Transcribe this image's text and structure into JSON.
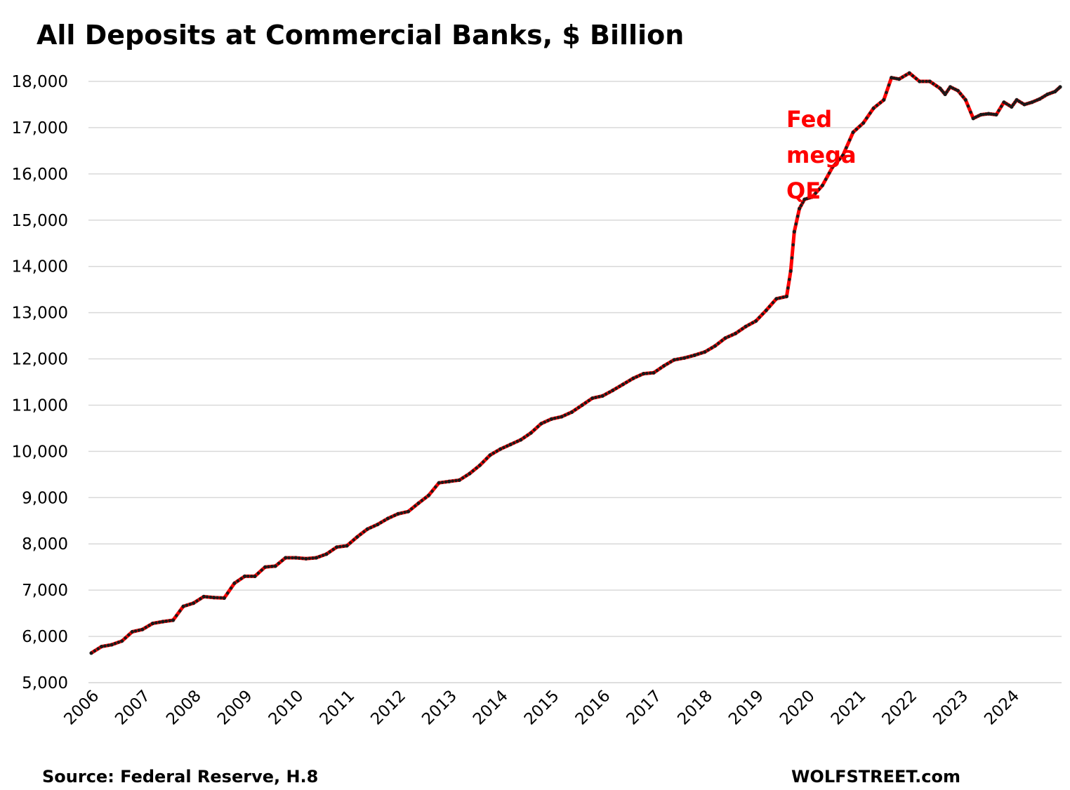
{
  "chart_data": {
    "type": "line",
    "title": "All Deposits at Commercial Banks, $ Billion",
    "xlabel": "",
    "ylabel": "",
    "ylim": [
      5000,
      18000
    ],
    "xlim": [
      2006.0,
      2024.95
    ],
    "yticks": [
      "5,000",
      "6,000",
      "7,000",
      "8,000",
      "9,000",
      "10,000",
      "11,000",
      "12,000",
      "13,000",
      "14,000",
      "15,000",
      "16,000",
      "17,000",
      "18,000"
    ],
    "ytick_values": [
      5000,
      6000,
      7000,
      8000,
      9000,
      10000,
      11000,
      12000,
      13000,
      14000,
      15000,
      16000,
      17000,
      18000
    ],
    "xticks": [
      "2006",
      "2007",
      "2008",
      "2009",
      "2010",
      "2011",
      "2012",
      "2013",
      "2014",
      "2015",
      "2016",
      "2017",
      "2018",
      "2019",
      "2020",
      "2021",
      "2022",
      "2023",
      "2024"
    ],
    "xtick_values": [
      2006,
      2007,
      2008,
      2009,
      2010,
      2011,
      2012,
      2013,
      2014,
      2015,
      2016,
      2017,
      2018,
      2019,
      2020,
      2021,
      2022,
      2023,
      2024
    ],
    "grid": "horizontal",
    "legend": "none",
    "line_color": "#ff0000",
    "marker_color": "#1a1a1a",
    "series": [
      {
        "points": [
          [
            2006.0,
            5640
          ],
          [
            2006.2,
            5780
          ],
          [
            2006.4,
            5820
          ],
          [
            2006.6,
            5900
          ],
          [
            2006.8,
            6100
          ],
          [
            2007.0,
            6150
          ],
          [
            2007.2,
            6280
          ],
          [
            2007.4,
            6320
          ],
          [
            2007.6,
            6350
          ],
          [
            2007.8,
            6650
          ],
          [
            2008.0,
            6720
          ],
          [
            2008.2,
            6860
          ],
          [
            2008.4,
            6840
          ],
          [
            2008.6,
            6830
          ],
          [
            2008.8,
            7150
          ],
          [
            2009.0,
            7300
          ],
          [
            2009.2,
            7300
          ],
          [
            2009.4,
            7500
          ],
          [
            2009.6,
            7520
          ],
          [
            2009.8,
            7700
          ],
          [
            2010.0,
            7700
          ],
          [
            2010.2,
            7680
          ],
          [
            2010.4,
            7700
          ],
          [
            2010.6,
            7780
          ],
          [
            2010.8,
            7930
          ],
          [
            2011.0,
            7960
          ],
          [
            2011.2,
            8150
          ],
          [
            2011.4,
            8320
          ],
          [
            2011.6,
            8420
          ],
          [
            2011.8,
            8550
          ],
          [
            2012.0,
            8650
          ],
          [
            2012.2,
            8700
          ],
          [
            2012.4,
            8880
          ],
          [
            2012.6,
            9050
          ],
          [
            2012.8,
            9320
          ],
          [
            2013.0,
            9350
          ],
          [
            2013.2,
            9380
          ],
          [
            2013.4,
            9520
          ],
          [
            2013.6,
            9700
          ],
          [
            2013.8,
            9920
          ],
          [
            2014.0,
            10050
          ],
          [
            2014.2,
            10150
          ],
          [
            2014.4,
            10250
          ],
          [
            2014.6,
            10400
          ],
          [
            2014.8,
            10600
          ],
          [
            2015.0,
            10700
          ],
          [
            2015.2,
            10750
          ],
          [
            2015.4,
            10850
          ],
          [
            2015.6,
            11000
          ],
          [
            2015.8,
            11150
          ],
          [
            2016.0,
            11200
          ],
          [
            2016.2,
            11320
          ],
          [
            2016.4,
            11450
          ],
          [
            2016.6,
            11580
          ],
          [
            2016.8,
            11680
          ],
          [
            2017.0,
            11700
          ],
          [
            2017.2,
            11850
          ],
          [
            2017.4,
            11980
          ],
          [
            2017.6,
            12020
          ],
          [
            2017.8,
            12080
          ],
          [
            2018.0,
            12150
          ],
          [
            2018.2,
            12280
          ],
          [
            2018.4,
            12450
          ],
          [
            2018.6,
            12550
          ],
          [
            2018.8,
            12700
          ],
          [
            2019.0,
            12820
          ],
          [
            2019.2,
            13050
          ],
          [
            2019.4,
            13300
          ],
          [
            2019.6,
            13350
          ],
          [
            2019.68,
            13900
          ],
          [
            2019.75,
            14750
          ],
          [
            2019.85,
            15250
          ],
          [
            2019.95,
            15450
          ],
          [
            2020.1,
            15500
          ],
          [
            2020.3,
            15750
          ],
          [
            2020.5,
            16150
          ],
          [
            2020.7,
            16400
          ],
          [
            2020.9,
            16900
          ],
          [
            2021.1,
            17100
          ],
          [
            2021.3,
            17420
          ],
          [
            2021.5,
            17600
          ],
          [
            2021.65,
            18080
          ],
          [
            2021.8,
            18050
          ],
          [
            2022.0,
            18180
          ],
          [
            2022.2,
            18000
          ],
          [
            2022.4,
            18000
          ],
          [
            2022.6,
            17850
          ],
          [
            2022.7,
            17720
          ],
          [
            2022.8,
            17880
          ],
          [
            2022.95,
            17800
          ],
          [
            2023.1,
            17600
          ],
          [
            2023.25,
            17200
          ],
          [
            2023.4,
            17280
          ],
          [
            2023.55,
            17300
          ],
          [
            2023.7,
            17280
          ],
          [
            2023.85,
            17550
          ],
          [
            2024.0,
            17450
          ],
          [
            2024.1,
            17600
          ],
          [
            2024.25,
            17500
          ],
          [
            2024.4,
            17550
          ],
          [
            2024.55,
            17620
          ],
          [
            2024.7,
            17720
          ],
          [
            2024.85,
            17780
          ],
          [
            2024.95,
            17880
          ]
        ]
      }
    ],
    "annotation": {
      "lines": [
        "Fed",
        "mega",
        "QE"
      ],
      "color": "#ff0000"
    }
  },
  "footer": {
    "source": "Source: Federal Reserve, H.8",
    "brand": "WOLFSTREET.com"
  }
}
